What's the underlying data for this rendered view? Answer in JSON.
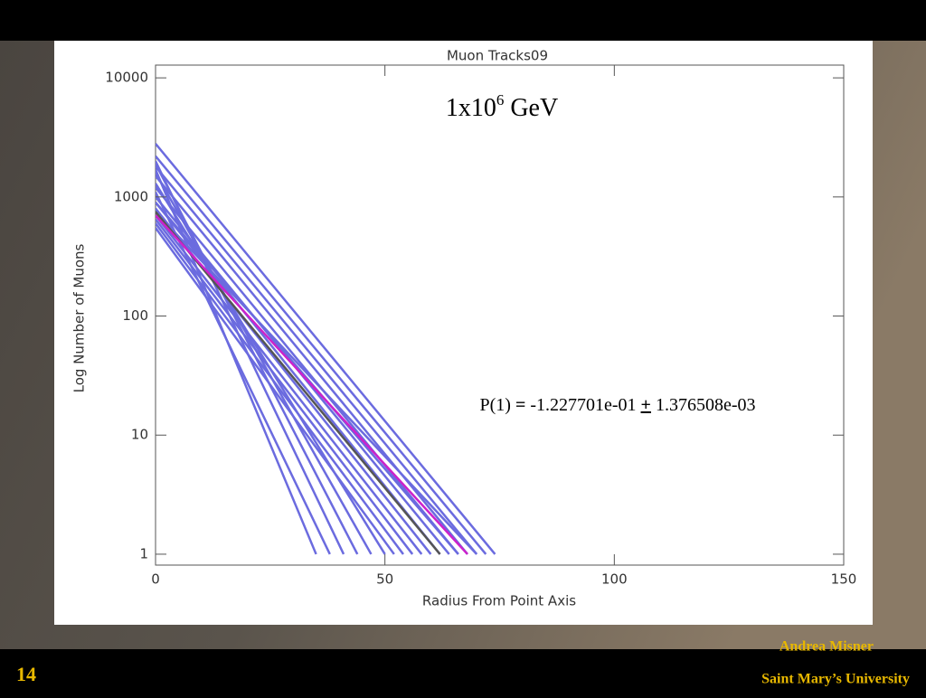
{
  "chart_data": {
    "type": "line",
    "title": "Muon Tracks09",
    "xlabel": "Radius From Point Axis",
    "ylabel": "Log Number of Muons",
    "annotation": {
      "text": "1x10",
      "sup": "6",
      "tail": " GeV"
    },
    "fit": {
      "lead": "P(1) ",
      "eq": "=",
      "mid": " -1.227701e-01 ",
      "pm": "+",
      "tail": " 1.376508e-03"
    },
    "log_y": true,
    "xlim": [
      0,
      150
    ],
    "ylim": [
      0.81,
      12800
    ],
    "xticks": [
      0,
      50,
      100,
      150
    ],
    "yticks": [
      1,
      10,
      100,
      1000,
      10000
    ],
    "series": [
      {
        "color": "#6b6bdf",
        "x": [
          0,
          74
        ],
        "values": [
          2800,
          1
        ]
      },
      {
        "color": "#6b6bdf",
        "x": [
          0,
          72
        ],
        "values": [
          2200,
          1
        ]
      },
      {
        "color": "#6b6bdf",
        "x": [
          0,
          70
        ],
        "values": [
          1800,
          1
        ]
      },
      {
        "color": "#6b6bdf",
        "x": [
          0,
          68
        ],
        "values": [
          1500,
          1
        ]
      },
      {
        "color": "#6b6bdf",
        "x": [
          0,
          66
        ],
        "values": [
          1200,
          1
        ]
      },
      {
        "color": "#6b6bdf",
        "x": [
          0,
          64
        ],
        "values": [
          1000,
          1
        ]
      },
      {
        "color": "#6b6bdf",
        "x": [
          0,
          62
        ],
        "values": [
          900,
          1
        ]
      },
      {
        "color": "#6b6bdf",
        "x": [
          0,
          60
        ],
        "values": [
          800,
          1
        ]
      },
      {
        "color": "#6b6bdf",
        "x": [
          0,
          58
        ],
        "values": [
          700,
          1
        ]
      },
      {
        "color": "#6b6bdf",
        "x": [
          0,
          56
        ],
        "values": [
          650,
          1
        ]
      },
      {
        "color": "#6b6bdf",
        "x": [
          0,
          54
        ],
        "values": [
          600,
          1
        ]
      },
      {
        "color": "#6b6bdf",
        "x": [
          0,
          52
        ],
        "values": [
          550,
          1
        ]
      },
      {
        "color": "#6b6bdf",
        "x": [
          0,
          50
        ],
        "values": [
          1300,
          1
        ]
      },
      {
        "color": "#6b6bdf",
        "x": [
          0,
          47
        ],
        "values": [
          1600,
          1
        ]
      },
      {
        "color": "#6b6bdf",
        "x": [
          0,
          44
        ],
        "values": [
          1900,
          1
        ]
      },
      {
        "color": "#6b6bdf",
        "x": [
          0,
          41
        ],
        "values": [
          2000,
          1
        ]
      },
      {
        "color": "#6b6bdf",
        "x": [
          0,
          38
        ],
        "values": [
          1100,
          1
        ]
      },
      {
        "color": "#6b6bdf",
        "x": [
          0,
          35
        ],
        "values": [
          1700,
          1
        ]
      },
      {
        "color": "#6b6bdf",
        "x": [
          0,
          66
        ],
        "values": [
          900,
          1
        ]
      },
      {
        "color": "#6b6bdf",
        "x": [
          0,
          70
        ],
        "values": [
          750,
          1
        ]
      },
      {
        "color": "#555555",
        "x": [
          0,
          62
        ],
        "values": [
          750,
          1
        ]
      },
      {
        "color": "#cc22cc",
        "x": [
          0,
          68
        ],
        "values": [
          700,
          1
        ]
      }
    ]
  },
  "slide": {
    "number": "14",
    "author": "Andrea Misner",
    "school": "Saint Mary’s University"
  }
}
